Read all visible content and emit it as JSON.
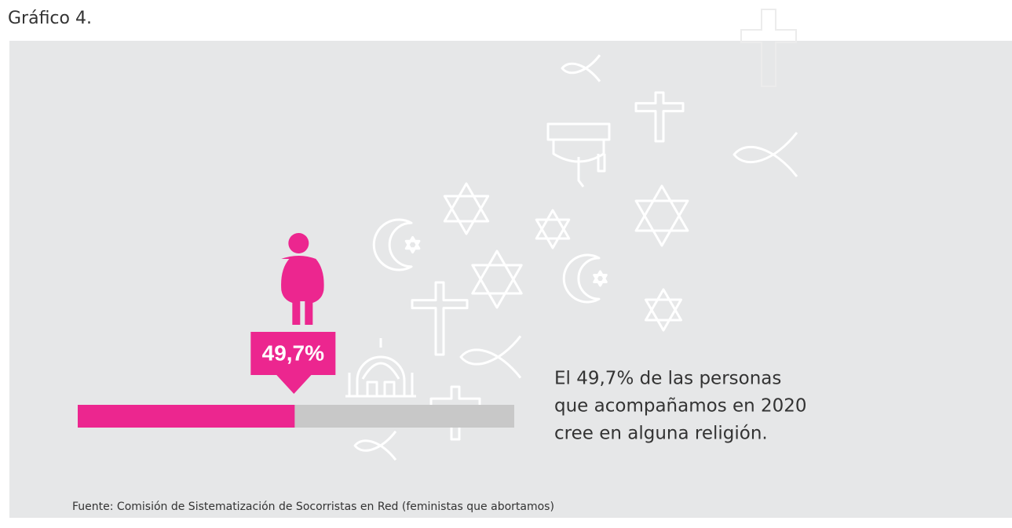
{
  "heading": "Gráfico 4.",
  "chart_data": {
    "type": "progress",
    "values": [
      49.7
    ],
    "value_labels": [
      "49,7%"
    ],
    "xlim": [
      0,
      100
    ],
    "color": "#ec268f",
    "track_color": "#c8c8c8",
    "annotation": [
      "El 49,7% de las personas",
      "que acompañamos en 2020",
      "cree en alguna religión."
    ],
    "source": "Fuente: Comisión de Sistematización de Socorristas en Red (feministas que abortamos)"
  }
}
